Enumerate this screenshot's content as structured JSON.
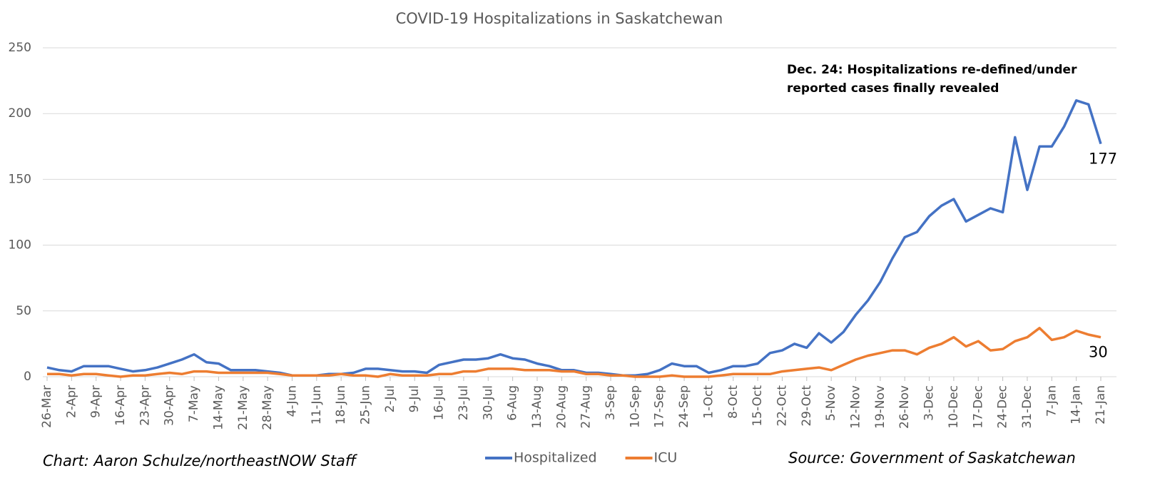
{
  "chart_data": {
    "type": "line",
    "title": "COVID-19 Hospitalizations in Saskatchewan",
    "annotation": "Dec. 24: Hospitalizations re-defined/under reported cases finally revealed",
    "credit": "Chart: Aaron Schulze/northeastNOW Staff",
    "source": "Source: Government of Saskatchewan",
    "categories": [
      "26-Mar",
      null,
      "2-Apr",
      null,
      "9-Apr",
      null,
      "16-Apr",
      null,
      "23-Apr",
      null,
      "30-Apr",
      null,
      "7-May",
      null,
      "14-May",
      null,
      "21-May",
      null,
      "28-May",
      null,
      "4-Jun",
      null,
      "11-Jun",
      null,
      "18-Jun",
      null,
      "25-Jun",
      null,
      "2-Jul",
      null,
      "9-Jul",
      null,
      "16-Jul",
      null,
      "23-Jul",
      null,
      "30-Jul",
      null,
      "6-Aug",
      null,
      "13-Aug",
      null,
      "20-Aug",
      null,
      "27-Aug",
      null,
      "3-Sep",
      null,
      "10-Sep",
      null,
      "17-Sep",
      null,
      "24-Sep",
      null,
      "1-Oct",
      null,
      "8-Oct",
      null,
      "15-Oct",
      null,
      "22-Oct",
      null,
      "29-Oct",
      null,
      "5-Nov",
      null,
      "12-Nov",
      null,
      "19-Nov",
      null,
      "26-Nov",
      null,
      "3-Dec",
      null,
      "10-Dec",
      null,
      "17-Dec",
      null,
      "24-Dec",
      null,
      "31-Dec",
      null,
      "7-Jan",
      null,
      "14-Jan",
      null,
      "21-Jan"
    ],
    "series": [
      {
        "name": "Hospitalized",
        "color": "#4472c4",
        "values": [
          7,
          5,
          4,
          8,
          8,
          8,
          6,
          4,
          5,
          7,
          10,
          13,
          17,
          11,
          10,
          5,
          5,
          5,
          4,
          3,
          1,
          1,
          1,
          2,
          2,
          3,
          6,
          6,
          5,
          4,
          4,
          3,
          9,
          11,
          13,
          13,
          14,
          17,
          14,
          13,
          10,
          8,
          5,
          5,
          3,
          3,
          2,
          1,
          1,
          2,
          5,
          10,
          8,
          8,
          3,
          5,
          8,
          8,
          10,
          18,
          20,
          25,
          22,
          33,
          26,
          34,
          47,
          58,
          72,
          90,
          106,
          110,
          122,
          130,
          135,
          118,
          123,
          128,
          125,
          182,
          142,
          175,
          175,
          190,
          210,
          207,
          177
        ]
      },
      {
        "name": "ICU",
        "color": "#ed7d31",
        "values": [
          2,
          2,
          1,
          2,
          2,
          1,
          0,
          1,
          1,
          2,
          3,
          2,
          4,
          4,
          3,
          3,
          3,
          3,
          3,
          2,
          1,
          1,
          1,
          1,
          2,
          1,
          1,
          0,
          2,
          1,
          1,
          1,
          2,
          2,
          4,
          4,
          6,
          6,
          6,
          5,
          5,
          5,
          4,
          4,
          2,
          2,
          1,
          1,
          0,
          0,
          0,
          1,
          0,
          0,
          0,
          1,
          2,
          2,
          2,
          2,
          4,
          5,
          6,
          7,
          5,
          9,
          13,
          16,
          18,
          20,
          20,
          17,
          22,
          25,
          30,
          23,
          27,
          20,
          21,
          27,
          30,
          37,
          28,
          30,
          35,
          32,
          30
        ]
      }
    ],
    "ylim": [
      0,
      250
    ],
    "yticks": [
      0,
      50,
      100,
      150,
      200,
      250
    ],
    "grid": true
  }
}
